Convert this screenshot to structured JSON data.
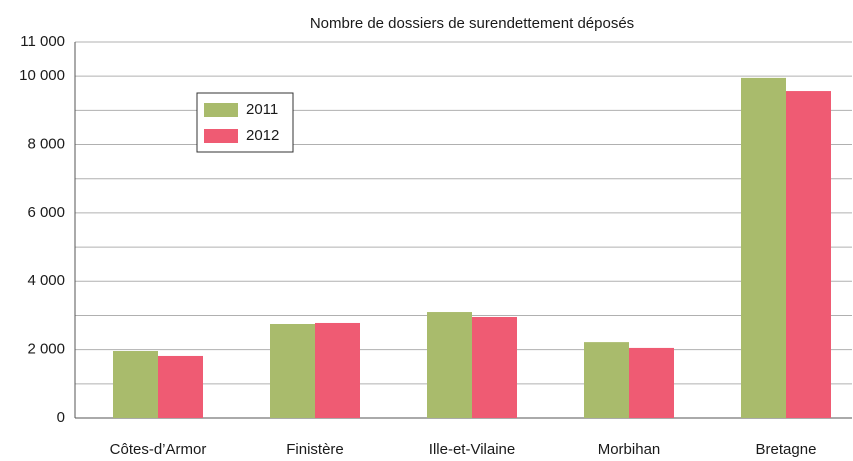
{
  "chart_data": {
    "type": "bar",
    "title": "Nombre de dossiers de surendettement déposés",
    "categories": [
      "Côtes-d’Armor",
      "Finistère",
      "Ille-et-Vilaine",
      "Morbihan",
      "Bretagne"
    ],
    "series": [
      {
        "name": "2011",
        "color": "#a9bb6c",
        "values": [
          1960,
          2750,
          3100,
          2220,
          9950
        ]
      },
      {
        "name": "2012",
        "color": "#ef5b73",
        "values": [
          1815,
          2780,
          2955,
          2050,
          9565
        ]
      }
    ],
    "ylim": [
      0,
      11000
    ],
    "yticks": [
      0,
      {
        "value": 2000,
        "label": "2 000"
      },
      {
        "value": 4000,
        "label": "4 000"
      },
      {
        "value": 6000,
        "label": "6 000"
      },
      {
        "value": 8000,
        "label": "8 000"
      },
      {
        "value": 10000,
        "label": "10 000"
      },
      {
        "value": 11000,
        "label": "11 000"
      }
    ],
    "minor_yticks": [
      1000,
      3000,
      5000,
      7000,
      9000
    ],
    "grid": true
  }
}
